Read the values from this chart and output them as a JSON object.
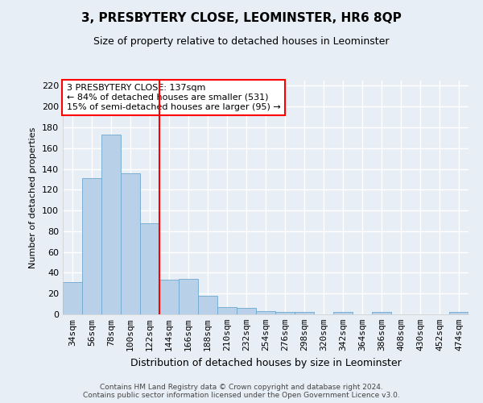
{
  "title": "3, PRESBYTERY CLOSE, LEOMINSTER, HR6 8QP",
  "subtitle": "Size of property relative to detached houses in Leominster",
  "xlabel": "Distribution of detached houses by size in Leominster",
  "ylabel": "Number of detached properties",
  "categories": [
    "34sqm",
    "56sqm",
    "78sqm",
    "100sqm",
    "122sqm",
    "144sqm",
    "166sqm",
    "188sqm",
    "210sqm",
    "232sqm",
    "254sqm",
    "276sqm",
    "298sqm",
    "320sqm",
    "342sqm",
    "364sqm",
    "386sqm",
    "408sqm",
    "430sqm",
    "452sqm",
    "474sqm"
  ],
  "values": [
    31,
    131,
    173,
    136,
    88,
    33,
    34,
    18,
    7,
    6,
    3,
    2,
    2,
    0,
    2,
    0,
    2,
    0,
    0,
    0,
    2
  ],
  "bar_color": "#b8d0e8",
  "bar_edge_color": "#6fa8d0",
  "vline_color": "red",
  "vline_pos": 4.5,
  "annotation_text": "3 PRESBYTERY CLOSE: 137sqm\n← 84% of detached houses are smaller (531)\n15% of semi-detached houses are larger (95) →",
  "annotation_box_color": "white",
  "annotation_box_edge_color": "red",
  "ylim": [
    0,
    225
  ],
  "yticks": [
    0,
    20,
    40,
    60,
    80,
    100,
    120,
    140,
    160,
    180,
    200,
    220
  ],
  "footnote": "Contains HM Land Registry data © Crown copyright and database right 2024.\nContains public sector information licensed under the Open Government Licence v3.0.",
  "background_color": "#e8eef5",
  "grid_color": "white",
  "title_fontsize": 11,
  "subtitle_fontsize": 9,
  "xlabel_fontsize": 9,
  "ylabel_fontsize": 8,
  "tick_fontsize": 8,
  "annot_fontsize": 8
}
